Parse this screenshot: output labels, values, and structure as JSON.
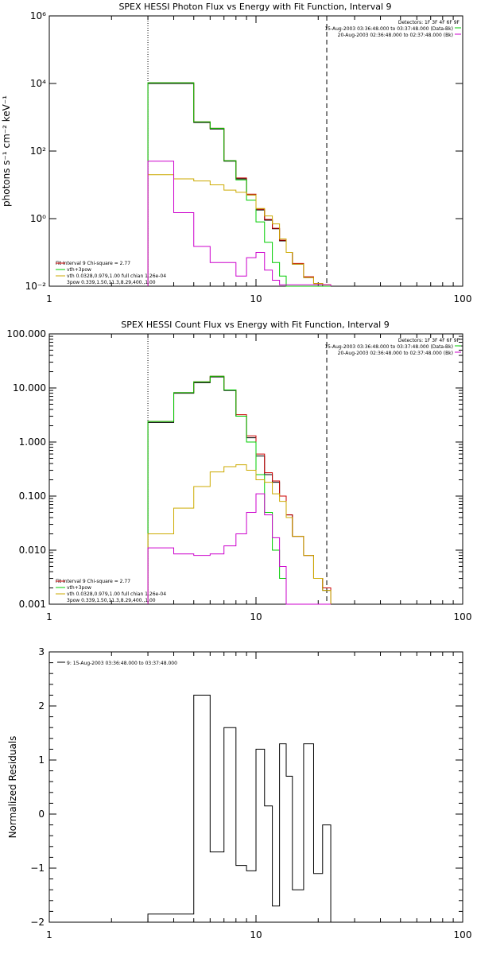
{
  "chart_data": [
    {
      "type": "line",
      "title": "SPEX HESSI Photon Flux vs Energy with Fit Function, Interval 9",
      "ylabel": "photons s⁻¹ cm⁻² keV⁻¹",
      "xlabel": "",
      "x_scale": "log",
      "y_scale": "log",
      "xlim": [
        1,
        100
      ],
      "ylim": [
        0.01,
        1000000
      ],
      "x_ticks": [
        "1",
        "10",
        "100"
      ],
      "y_ticks": [
        "10⁻²",
        "10⁰",
        "10²",
        "10⁴",
        "10⁶"
      ],
      "legend_top_right": [
        {
          "text": "Detectors: 1F 3F 4F 6F 9F",
          "color": "#000000"
        },
        {
          "text": "15-Aug-2003 03:36:48.000 to 03:37:48.000 (Data-Bk)",
          "color": "#00cc00"
        },
        {
          "text": "20-Aug-2003 02:36:48.000 to 02:37:48.000 (Bk)",
          "color": "#cc00cc"
        }
      ],
      "legend_bottom_left": [
        {
          "text": "Fit Interval 9   Chi-square = 2.77",
          "color": "#000000"
        },
        {
          "text": "vth+3pow",
          "color": "#cc0000"
        },
        {
          "text": "vth 0.0328,0.979,1.00  full chian 1.26e-04",
          "color": "#00cc00"
        },
        {
          "text": "3pow 0.339,1.50,11.3,8.29,400.,1.00",
          "color": "#ccaa00"
        }
      ],
      "vlines": [
        3,
        22
      ],
      "bin_edges": [
        3.0,
        4.0,
        5.0,
        6.0,
        7.0,
        8.0,
        9.0,
        10.0,
        11.0,
        12.0,
        13.0,
        14.0,
        15.0,
        17.0,
        19.0,
        21.0,
        23.0
      ],
      "series": [
        {
          "color": "#000000",
          "values": [
            10000,
            10000,
            700,
            450,
            50,
            15,
            5,
            1.8,
            0.9,
            0.5,
            0.22,
            0.1,
            0.045,
            0.018,
            0.012,
            0.01
          ]
        },
        {
          "color": "#cc0000",
          "values": [
            10500,
            10500,
            730,
            470,
            52,
            16,
            5.3,
            1.9,
            0.95,
            0.52,
            0.23,
            0.1,
            0.047,
            0.019,
            0.012,
            0.011
          ]
        },
        {
          "color": "#00cc00",
          "values": [
            10500,
            10500,
            730,
            470,
            52,
            14,
            3.5,
            0.8,
            0.2,
            0.05,
            0.02,
            0.01,
            0.01,
            0.01,
            0.01,
            0.01
          ]
        },
        {
          "color": "#ccaa00",
          "values": [
            20,
            15,
            13,
            10,
            7,
            6,
            5,
            2,
            1.2,
            0.7,
            0.25,
            0.1,
            0.045,
            0.018,
            0.012,
            0.011
          ]
        },
        {
          "color": "#cc00cc",
          "values": [
            50,
            1.5,
            0.15,
            0.05,
            0.05,
            0.02,
            0.07,
            0.1,
            0.03,
            0.015,
            0.011,
            0.011,
            0.011,
            0.011,
            0.011,
            0.011
          ]
        }
      ]
    },
    {
      "type": "line",
      "title": "SPEX HESSI Count Flux vs Energy with Fit Function, Interval 9",
      "ylabel": "",
      "xlabel": "",
      "x_scale": "log",
      "y_scale": "log",
      "xlim": [
        1,
        100
      ],
      "ylim": [
        0.001,
        100
      ],
      "x_ticks": [
        "1",
        "10",
        "100"
      ],
      "y_ticks": [
        "0.001",
        "0.010",
        "0.100",
        "1.000",
        "10.000",
        "100.000"
      ],
      "legend_top_right": [
        {
          "text": "Detectors: 1F 3F 4F 6F 9F",
          "color": "#000000"
        },
        {
          "text": "15-Aug-2003 03:36:48.000 to 03:37:48.000 (Data-Bk)",
          "color": "#00cc00"
        },
        {
          "text": "20-Aug-2003 02:36:48.000 to 02:37:48.000 (Bk)",
          "color": "#cc00cc"
        }
      ],
      "legend_bottom_left": [
        {
          "text": "Fit Interval 9   Chi-square = 2.77",
          "color": "#000000"
        },
        {
          "text": "vth+3pow",
          "color": "#cc0000"
        },
        {
          "text": "vth 0.0328,0.979,1.00  full chian 1.26e-04",
          "color": "#00cc00"
        },
        {
          "text": "3pow 0.339,1.50,11.3,8.29,400.,1.00",
          "color": "#ccaa00"
        }
      ],
      "vlines": [
        3,
        22
      ],
      "bin_edges": [
        3.0,
        4.0,
        5.0,
        6.0,
        7.0,
        8.0,
        9.0,
        10.0,
        11.0,
        12.0,
        13.0,
        14.0,
        15.0,
        17.0,
        19.0,
        21.0,
        23.0
      ],
      "series": [
        {
          "color": "#000000",
          "values": [
            2.3,
            8.0,
            12.5,
            16.0,
            9.0,
            3.0,
            1.2,
            0.55,
            0.25,
            0.18,
            0.1,
            0.045,
            0.018,
            0.008,
            0.003,
            0.0018
          ]
        },
        {
          "color": "#cc0000",
          "values": [
            2.4,
            8.2,
            13.0,
            16.5,
            9.2,
            3.2,
            1.3,
            0.6,
            0.27,
            0.19,
            0.1,
            0.045,
            0.018,
            0.008,
            0.003,
            0.002
          ]
        },
        {
          "color": "#00cc00",
          "values": [
            2.4,
            8.2,
            13.0,
            16.5,
            9.2,
            3.0,
            1.0,
            0.25,
            0.05,
            0.01,
            0.003,
            0.001,
            0.001,
            0.001,
            0.001,
            0.001
          ]
        },
        {
          "color": "#ccaa00",
          "values": [
            0.02,
            0.06,
            0.15,
            0.28,
            0.35,
            0.38,
            0.3,
            0.2,
            0.18,
            0.11,
            0.08,
            0.04,
            0.018,
            0.008,
            0.003,
            0.0018
          ]
        },
        {
          "color": "#cc00cc",
          "values": [
            0.011,
            0.0085,
            0.008,
            0.0085,
            0.012,
            0.02,
            0.05,
            0.11,
            0.045,
            0.017,
            0.005,
            0.001,
            0.001,
            0.001,
            0.001,
            0.001
          ]
        }
      ]
    },
    {
      "type": "line",
      "title": "",
      "ylabel": "Normalized Residuals",
      "xlabel": "",
      "x_scale": "log",
      "y_scale": "linear",
      "xlim": [
        1,
        100
      ],
      "ylim": [
        -2,
        3
      ],
      "x_ticks": [
        "1",
        "10",
        "100"
      ],
      "y_ticks": [
        "−2",
        "−1",
        "0",
        "1",
        "2",
        "3"
      ],
      "legend_top_left": [
        {
          "text": "9: 15-Aug-2003 03:36:48.000 to 03:37:48.000",
          "color": "#000000"
        }
      ],
      "bin_edges": [
        3.0,
        4.0,
        5.0,
        6.0,
        7.0,
        8.0,
        9.0,
        10.0,
        11.0,
        12.0,
        13.0,
        14.0,
        15.0,
        17.0,
        19.0,
        21.0,
        23.0
      ],
      "series": [
        {
          "color": "#000000",
          "values": [
            -1.85,
            -1.85,
            2.2,
            -0.7,
            1.6,
            -0.95,
            -1.05,
            1.2,
            0.15,
            -1.7,
            1.3,
            0.7,
            -1.4,
            1.3,
            -1.1,
            -0.2
          ]
        }
      ]
    }
  ]
}
